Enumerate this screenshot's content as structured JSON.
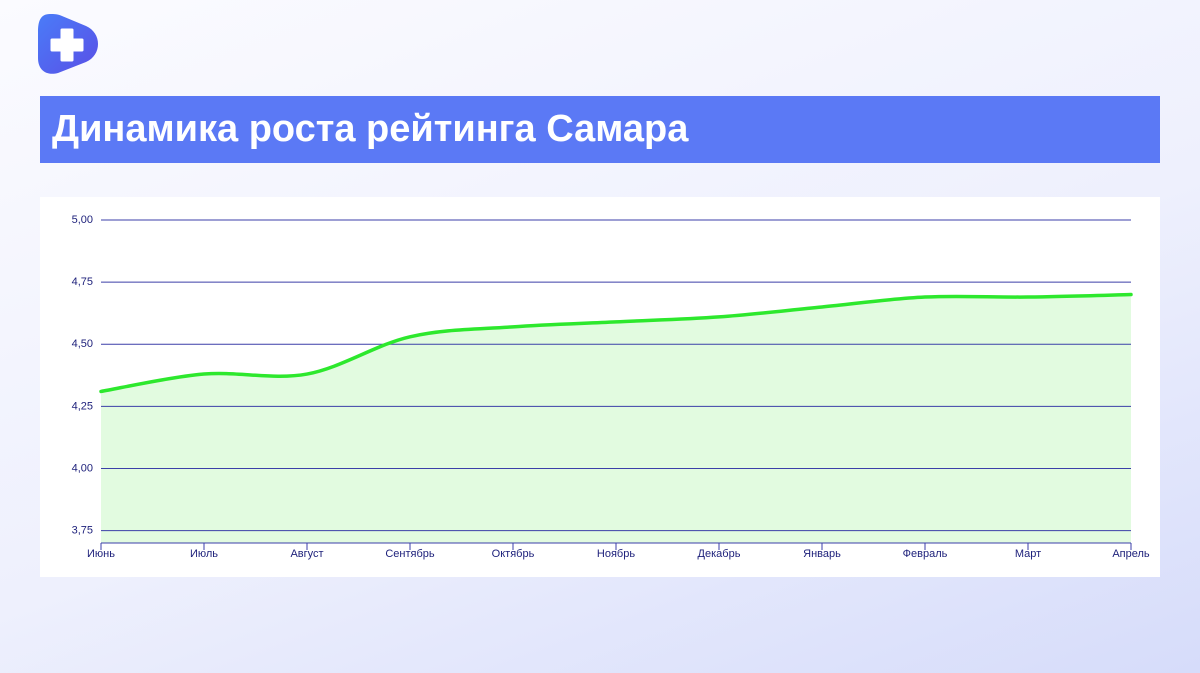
{
  "chart_data": {
    "type": "area",
    "title": "Динамика роста рейтинга Самара",
    "categories": [
      "Июнь",
      "Июль",
      "Август",
      "Сентябрь",
      "Октябрь",
      "Ноябрь",
      "Декабрь",
      "Январь",
      "Февраль",
      "Март",
      "Апрель"
    ],
    "values": [
      4.31,
      4.38,
      4.38,
      4.53,
      4.57,
      4.59,
      4.61,
      4.65,
      4.69,
      4.69,
      4.7
    ],
    "color": "#2de82d",
    "fill_color": "#e2fbe0",
    "ylim": [
      3.7,
      5.0
    ],
    "yticks": [
      {
        "value": 3.75,
        "label": "3,75"
      },
      {
        "value": 4.0,
        "label": "4,00"
      },
      {
        "value": 4.25,
        "label": "4,25"
      },
      {
        "value": 4.5,
        "label": "4,50"
      },
      {
        "value": 4.75,
        "label": "4,75"
      },
      {
        "value": 5.0,
        "label": "5,00"
      }
    ],
    "grid": true
  }
}
